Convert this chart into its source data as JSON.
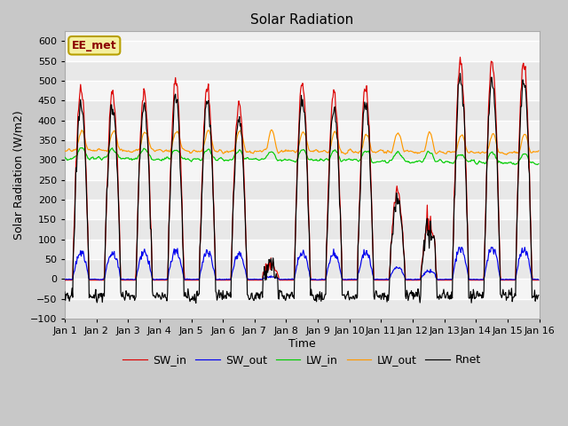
{
  "title": "Solar Radiation",
  "xlabel": "Time",
  "ylabel": "Solar Radiation (W/m2)",
  "ylim": [
    -100,
    625
  ],
  "xlim": [
    0,
    720
  ],
  "x_tick_labels": [
    "Jan 1",
    "Jan 2",
    "Jan 3",
    "Jan 4",
    "Jan 5",
    "Jan 6",
    "Jan 7",
    "Jan 8",
    "Jan 9",
    "Jan 10",
    "Jan 11",
    "Jan 12",
    "Jan 13",
    "Jan 14",
    "Jan 15",
    "Jan 16"
  ],
  "x_tick_positions": [
    0,
    48,
    96,
    144,
    192,
    240,
    288,
    336,
    384,
    432,
    480,
    528,
    576,
    624,
    672,
    720
  ],
  "legend_label": "EE_met",
  "series": [
    "SW_in",
    "SW_out",
    "LW_in",
    "LW_out",
    "Rnet"
  ],
  "colors": [
    "#dd0000",
    "#0000ee",
    "#00cc00",
    "#ff9900",
    "#000000"
  ],
  "fig_background": "#c8c8c8",
  "axes_background": "#f0f0f0",
  "grid_color": "#ffffff",
  "title_fontsize": 11,
  "label_fontsize": 9,
  "tick_fontsize": 8,
  "legend_fontsize": 9
}
